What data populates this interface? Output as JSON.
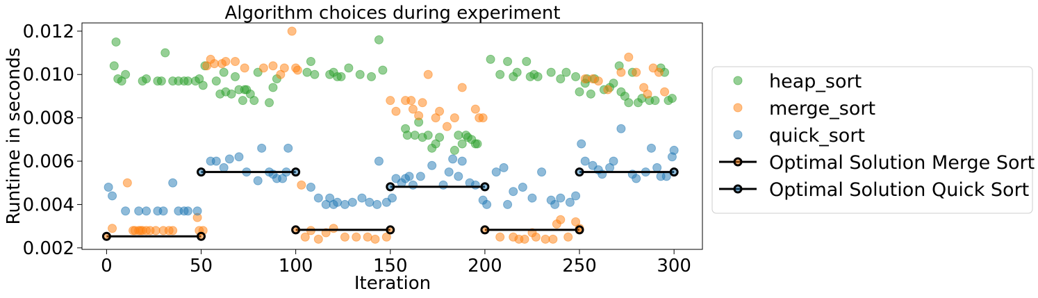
{
  "chart_data": {
    "type": "scatter",
    "title": "Algorithm choices during experiment",
    "xlabel": "Iteration",
    "ylabel": "Runtime in seconds",
    "xlim": [
      -13,
      315
    ],
    "ylim": [
      0.00193,
      0.01238
    ],
    "xticks": [
      0,
      50,
      100,
      150,
      200,
      250,
      300
    ],
    "xtick_labels": [
      "0",
      "50",
      "100",
      "150",
      "200",
      "250",
      "300"
    ],
    "yticks": [
      0.002,
      0.004,
      0.006,
      0.008,
      0.01,
      0.012
    ],
    "ytick_labels": [
      "0.002",
      "0.004",
      "0.006",
      "0.008",
      "0.010",
      "0.012"
    ],
    "grid": false,
    "legend_position": "right, outside plot",
    "series": [
      {
        "name": "heap_sort",
        "color": "#2ca02c",
        "points": [
          [
            4,
            0.0104
          ],
          [
            5,
            0.0115
          ],
          [
            6,
            0.0098
          ],
          [
            8,
            0.0097
          ],
          [
            10,
            0.01
          ],
          [
            19,
            0.0097
          ],
          [
            21,
            0.0098
          ],
          [
            27,
            0.0097
          ],
          [
            29,
            0.0097
          ],
          [
            31,
            0.011
          ],
          [
            35,
            0.0097
          ],
          [
            38,
            0.0097
          ],
          [
            41,
            0.0097
          ],
          [
            43,
            0.0097
          ],
          [
            47,
            0.0097
          ],
          [
            49,
            0.0098
          ],
          [
            51,
            0.0095
          ],
          [
            52,
            0.0104
          ],
          [
            58,
            0.0097
          ],
          [
            60,
            0.0091
          ],
          [
            62,
            0.0101
          ],
          [
            63,
            0.0092
          ],
          [
            66,
            0.0091
          ],
          [
            68,
            0.0099
          ],
          [
            70,
            0.0093
          ],
          [
            72,
            0.0088
          ],
          [
            73,
            0.0093
          ],
          [
            74,
            0.0093
          ],
          [
            76,
            0.0091
          ],
          [
            78,
            0.0088
          ],
          [
            80,
            0.0101
          ],
          [
            86,
            0.0087
          ],
          [
            88,
            0.0094
          ],
          [
            90,
            0.0098
          ],
          [
            106,
            0.0101
          ],
          [
            108,
            0.0106
          ],
          [
            110,
            0.01
          ],
          [
            118,
            0.01
          ],
          [
            120,
            0.0101
          ],
          [
            122,
            0.0099
          ],
          [
            124,
            0.0099
          ],
          [
            128,
            0.0103
          ],
          [
            134,
            0.01
          ],
          [
            140,
            0.0099
          ],
          [
            144,
            0.0116
          ],
          [
            146,
            0.0102
          ],
          [
            158,
            0.0075
          ],
          [
            159,
            0.0072
          ],
          [
            163,
            0.0072
          ],
          [
            165,
            0.0078
          ],
          [
            167,
            0.0071
          ],
          [
            170,
            0.0072
          ],
          [
            172,
            0.0066
          ],
          [
            174,
            0.0068
          ],
          [
            176,
            0.0071
          ],
          [
            184,
            0.0065
          ],
          [
            186,
            0.0072
          ],
          [
            188,
            0.0068
          ],
          [
            190,
            0.0072
          ],
          [
            191,
            0.0071
          ],
          [
            193,
            0.007
          ],
          [
            195,
            0.0068
          ],
          [
            196,
            0.0068
          ],
          [
            203,
            0.0107
          ],
          [
            208,
            0.01
          ],
          [
            212,
            0.0106
          ],
          [
            215,
            0.0099
          ],
          [
            217,
            0.0101
          ],
          [
            222,
            0.0106
          ],
          [
            224,
            0.0099
          ],
          [
            226,
            0.01
          ],
          [
            228,
            0.0099
          ],
          [
            235,
            0.0101
          ],
          [
            240,
            0.0098
          ],
          [
            243,
            0.0101
          ],
          [
            248,
            0.0099
          ],
          [
            250,
            0.0092
          ],
          [
            253,
            0.0096
          ],
          [
            254,
            0.0098
          ],
          [
            256,
            0.0091
          ],
          [
            258,
            0.0098
          ],
          [
            263,
            0.0093
          ],
          [
            266,
            0.0094
          ],
          [
            268,
            0.0096
          ],
          [
            271,
            0.0104
          ],
          [
            272,
            0.0092
          ],
          [
            274,
            0.009
          ],
          [
            276,
            0.0087
          ],
          [
            278,
            0.0101
          ],
          [
            281,
            0.0087
          ],
          [
            283,
            0.0089
          ],
          [
            287,
            0.0088
          ],
          [
            290,
            0.0088
          ],
          [
            293,
            0.0103
          ],
          [
            295,
            0.0101
          ],
          [
            297,
            0.0088
          ],
          [
            299,
            0.0089
          ]
        ]
      },
      {
        "name": "merge_sort",
        "color": "#ff7f0e",
        "points": [
          [
            3,
            0.0029
          ],
          [
            11,
            0.005
          ],
          [
            14,
            0.0028
          ],
          [
            15,
            0.0028
          ],
          [
            17,
            0.0028
          ],
          [
            18,
            0.0028
          ],
          [
            19,
            0.0028
          ],
          [
            21,
            0.0028
          ],
          [
            23,
            0.0028
          ],
          [
            26,
            0.0028
          ],
          [
            30,
            0.0028
          ],
          [
            33,
            0.0028
          ],
          [
            35,
            0.0028
          ],
          [
            48,
            0.0034
          ],
          [
            49,
            0.0028
          ],
          [
            51,
            0.0028
          ],
          [
            53,
            0.0104
          ],
          [
            55,
            0.0107
          ],
          [
            57,
            0.0105
          ],
          [
            61,
            0.0105
          ],
          [
            63,
            0.0106
          ],
          [
            68,
            0.0106
          ],
          [
            73,
            0.0103
          ],
          [
            83,
            0.0103
          ],
          [
            88,
            0.0104
          ],
          [
            92,
            0.01
          ],
          [
            94,
            0.0103
          ],
          [
            98,
            0.012
          ],
          [
            100,
            0.0103
          ],
          [
            101,
            0.0102
          ],
          [
            103,
            0.0049
          ],
          [
            105,
            0.0025
          ],
          [
            108,
            0.0028
          ],
          [
            112,
            0.0024
          ],
          [
            116,
            0.0027
          ],
          [
            120,
            0.0029
          ],
          [
            126,
            0.0025
          ],
          [
            132,
            0.0025
          ],
          [
            138,
            0.0025
          ],
          [
            142,
            0.0024
          ],
          [
            148,
            0.0025
          ],
          [
            150,
            0.0088
          ],
          [
            153,
            0.0083
          ],
          [
            158,
            0.0088
          ],
          [
            161,
            0.0088
          ],
          [
            162,
            0.0084
          ],
          [
            165,
            0.0081
          ],
          [
            167,
            0.0087
          ],
          [
            170,
            0.01
          ],
          [
            174,
            0.008
          ],
          [
            176,
            0.0083
          ],
          [
            180,
            0.0076
          ],
          [
            184,
            0.008
          ],
          [
            188,
            0.0094
          ],
          [
            195,
            0.0084
          ],
          [
            197,
            0.008
          ],
          [
            199,
            0.008
          ],
          [
            208,
            0.0025
          ],
          [
            215,
            0.0025
          ],
          [
            218,
            0.0024
          ],
          [
            221,
            0.0024
          ],
          [
            225,
            0.0027
          ],
          [
            227,
            0.0025
          ],
          [
            232,
            0.0024
          ],
          [
            236,
            0.0024
          ],
          [
            238,
            0.0031
          ],
          [
            240,
            0.0033
          ],
          [
            244,
            0.0025
          ],
          [
            248,
            0.0032
          ],
          [
            250,
            0.0029
          ],
          [
            253,
            0.0098
          ],
          [
            257,
            0.0098
          ],
          [
            260,
            0.0097
          ],
          [
            265,
            0.0093
          ],
          [
            272,
            0.0101
          ],
          [
            276,
            0.0108
          ],
          [
            280,
            0.0101
          ],
          [
            284,
            0.0094
          ],
          [
            286,
            0.0091
          ],
          [
            289,
            0.0103
          ],
          [
            292,
            0.0101
          ],
          [
            295,
            0.0092
          ]
        ]
      },
      {
        "name": "quick_sort",
        "color": "#1f77b4",
        "points": [
          [
            1,
            0.0048
          ],
          [
            3,
            0.0044
          ],
          [
            10,
            0.0037
          ],
          [
            17,
            0.0037
          ],
          [
            21,
            0.0037
          ],
          [
            27,
            0.0037
          ],
          [
            30,
            0.0037
          ],
          [
            35,
            0.005
          ],
          [
            38,
            0.0037
          ],
          [
            41,
            0.0037
          ],
          [
            43,
            0.0037
          ],
          [
            48,
            0.0037
          ],
          [
            55,
            0.006
          ],
          [
            58,
            0.006
          ],
          [
            62,
            0.0057
          ],
          [
            65,
            0.0061
          ],
          [
            70,
            0.0062
          ],
          [
            74,
            0.0055
          ],
          [
            80,
            0.0051
          ],
          [
            82,
            0.0066
          ],
          [
            86,
            0.0055
          ],
          [
            88,
            0.0054
          ],
          [
            90,
            0.0052
          ],
          [
            93,
            0.0052
          ],
          [
            95,
            0.0055
          ],
          [
            96,
            0.0066
          ],
          [
            108,
            0.0048
          ],
          [
            112,
            0.0043
          ],
          [
            116,
            0.004
          ],
          [
            118,
            0.0043
          ],
          [
            120,
            0.004
          ],
          [
            122,
            0.0041
          ],
          [
            126,
            0.004
          ],
          [
            130,
            0.0041
          ],
          [
            135,
            0.0043
          ],
          [
            139,
            0.0041
          ],
          [
            143,
            0.004
          ],
          [
            144,
            0.006
          ],
          [
            148,
            0.0041
          ],
          [
            151,
            0.0043
          ],
          [
            153,
            0.0052
          ],
          [
            156,
            0.005
          ],
          [
            158,
            0.0052
          ],
          [
            160,
            0.0053
          ],
          [
            162,
            0.0049
          ],
          [
            166,
            0.0053
          ],
          [
            172,
            0.0058
          ],
          [
            178,
            0.0049
          ],
          [
            181,
            0.0055
          ],
          [
            183,
            0.0061
          ],
          [
            186,
            0.0053
          ],
          [
            188,
            0.006
          ],
          [
            192,
            0.005
          ],
          [
            195,
            0.0049
          ],
          [
            199,
            0.0042
          ],
          [
            201,
            0.004
          ],
          [
            206,
            0.0055
          ],
          [
            210,
            0.0057
          ],
          [
            212,
            0.004
          ],
          [
            215,
            0.0046
          ],
          [
            220,
            0.0048
          ],
          [
            225,
            0.0043
          ],
          [
            230,
            0.0055
          ],
          [
            235,
            0.0042
          ],
          [
            237,
            0.004
          ],
          [
            240,
            0.0043
          ],
          [
            245,
            0.0041
          ],
          [
            248,
            0.0044
          ],
          [
            251,
            0.0068
          ],
          [
            253,
            0.006
          ],
          [
            257,
            0.0058
          ],
          [
            260,
            0.0056
          ],
          [
            262,
            0.0054
          ],
          [
            266,
            0.0057
          ],
          [
            268,
            0.006
          ],
          [
            272,
            0.0075
          ],
          [
            278,
            0.0054
          ],
          [
            280,
            0.0052
          ],
          [
            285,
            0.0055
          ],
          [
            288,
            0.0066
          ],
          [
            291,
            0.0057
          ],
          [
            293,
            0.0053
          ],
          [
            296,
            0.0053
          ],
          [
            299,
            0.0062
          ],
          [
            300,
            0.0065
          ]
        ]
      }
    ],
    "lines": [
      {
        "name": "Optimal Solution Merge Sort",
        "color": "#000000",
        "marker_edge": "#ff7f0e",
        "segments": [
          [
            [
              0,
              0.00253
            ],
            [
              50,
              0.00253
            ]
          ],
          [
            [
              100,
              0.00283
            ],
            [
              150,
              0.00283
            ]
          ],
          [
            [
              200,
              0.00283
            ],
            [
              250,
              0.00283
            ]
          ]
        ]
      },
      {
        "name": "Optimal Solution Quick Sort",
        "color": "#000000",
        "marker_edge": "#1f77b4",
        "segments": [
          [
            [
              50,
              0.0055
            ],
            [
              100,
              0.0055
            ]
          ],
          [
            [
              150,
              0.00482
            ],
            [
              200,
              0.00482
            ]
          ],
          [
            [
              250,
              0.0055
            ],
            [
              300,
              0.0055
            ]
          ]
        ]
      }
    ]
  }
}
